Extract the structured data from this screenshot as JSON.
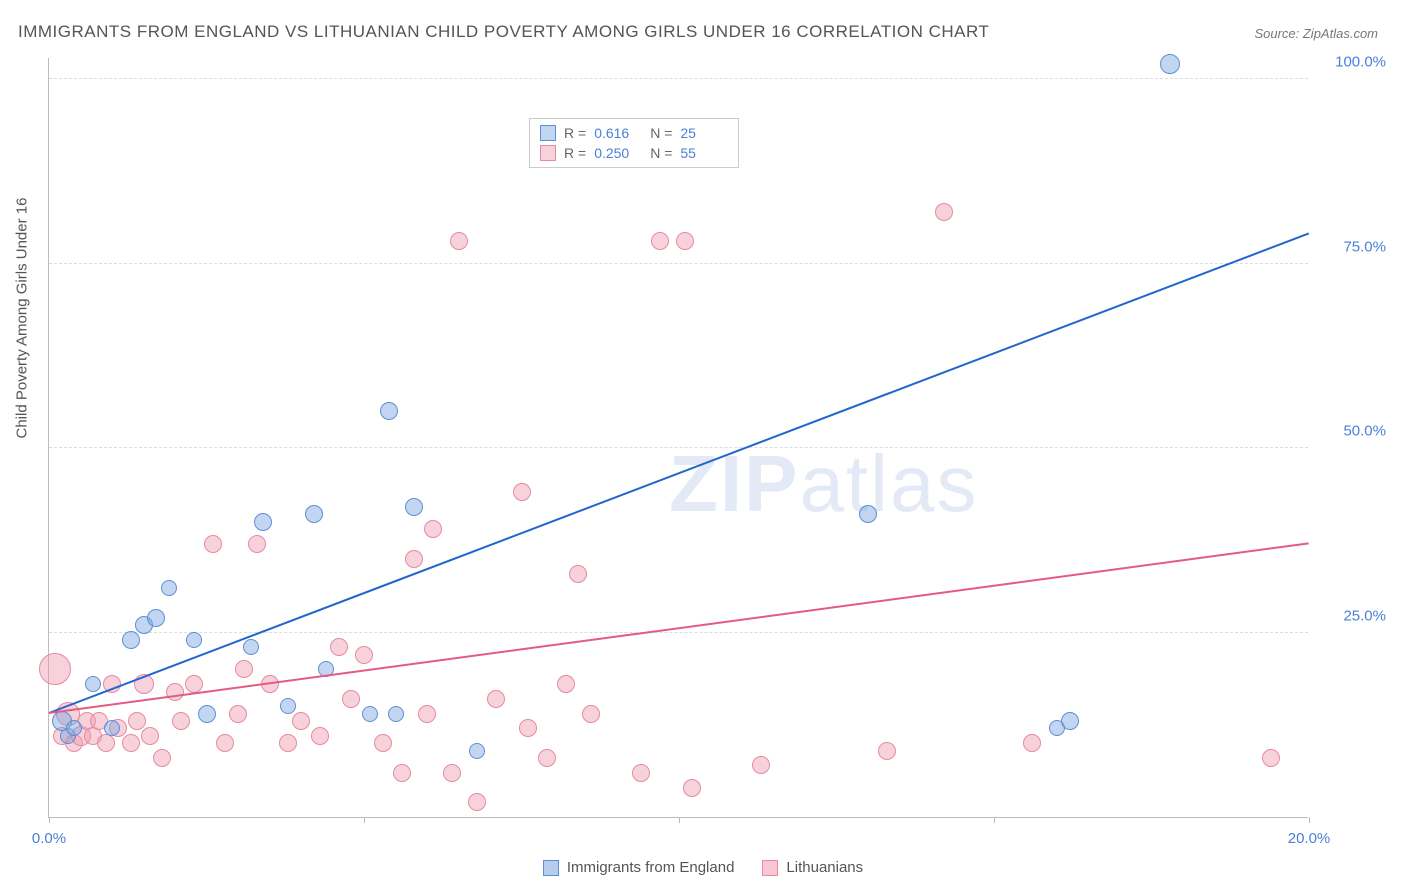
{
  "title": "IMMIGRANTS FROM ENGLAND VS LITHUANIAN CHILD POVERTY AMONG GIRLS UNDER 16 CORRELATION CHART",
  "source": "Source: ZipAtlas.com",
  "y_axis_label": "Child Poverty Among Girls Under 16",
  "watermark": {
    "prefix": "ZIP",
    "suffix": "atlas"
  },
  "chart": {
    "type": "scatter",
    "xlim": [
      0,
      20
    ],
    "ylim": [
      0,
      103
    ],
    "x_ticks": [
      0,
      5,
      10,
      15,
      20
    ],
    "x_tick_labels": [
      "0.0%",
      "",
      "",
      "",
      "20.0%"
    ],
    "y_ticks": [
      25,
      50,
      75,
      100
    ],
    "y_tick_labels": [
      "25.0%",
      "50.0%",
      "75.0%",
      "100.0%"
    ],
    "background_color": "#ffffff",
    "grid_color": "#dddddd",
    "axis_color": "#bbbbbb",
    "tick_label_color": "#4a7fd8",
    "series": [
      {
        "name": "Immigrants from England",
        "marker_fill": "rgba(120,165,225,0.45)",
        "marker_stroke": "#5d8fd4",
        "line_color": "#2166cc",
        "line_width": 2,
        "R": "0.616",
        "N": "25",
        "trend": {
          "x1": 0,
          "y1": 14,
          "x2": 20,
          "y2": 79
        },
        "points": [
          {
            "x": 0.2,
            "y": 13,
            "r": 10
          },
          {
            "x": 0.3,
            "y": 11,
            "r": 8
          },
          {
            "x": 0.4,
            "y": 12,
            "r": 8
          },
          {
            "x": 0.7,
            "y": 18,
            "r": 8
          },
          {
            "x": 1.0,
            "y": 12,
            "r": 8
          },
          {
            "x": 1.3,
            "y": 24,
            "r": 9
          },
          {
            "x": 1.5,
            "y": 26,
            "r": 9
          },
          {
            "x": 1.7,
            "y": 27,
            "r": 9
          },
          {
            "x": 1.9,
            "y": 31,
            "r": 8
          },
          {
            "x": 2.3,
            "y": 24,
            "r": 8
          },
          {
            "x": 2.5,
            "y": 14,
            "r": 9
          },
          {
            "x": 3.2,
            "y": 23,
            "r": 8
          },
          {
            "x": 3.4,
            "y": 40,
            "r": 9
          },
          {
            "x": 3.8,
            "y": 15,
            "r": 8
          },
          {
            "x": 4.2,
            "y": 41,
            "r": 9
          },
          {
            "x": 4.4,
            "y": 20,
            "r": 8
          },
          {
            "x": 5.1,
            "y": 14,
            "r": 8
          },
          {
            "x": 5.4,
            "y": 55,
            "r": 9
          },
          {
            "x": 5.5,
            "y": 14,
            "r": 8
          },
          {
            "x": 5.8,
            "y": 42,
            "r": 9
          },
          {
            "x": 6.8,
            "y": 9,
            "r": 8
          },
          {
            "x": 13.0,
            "y": 41,
            "r": 9
          },
          {
            "x": 16.0,
            "y": 12,
            "r": 8
          },
          {
            "x": 16.2,
            "y": 13,
            "r": 9
          },
          {
            "x": 17.8,
            "y": 102,
            "r": 10
          }
        ]
      },
      {
        "name": "Lithuanians",
        "marker_fill": "rgba(240,155,175,0.45)",
        "marker_stroke": "#e58aa2",
        "line_color": "#e35a84",
        "line_width": 2,
        "R": "0.250",
        "N": "55",
        "trend": {
          "x1": 0,
          "y1": 14,
          "x2": 20,
          "y2": 37
        },
        "points": [
          {
            "x": 0.1,
            "y": 20,
            "r": 16
          },
          {
            "x": 0.2,
            "y": 11,
            "r": 9
          },
          {
            "x": 0.3,
            "y": 14,
            "r": 12
          },
          {
            "x": 0.4,
            "y": 10,
            "r": 9
          },
          {
            "x": 0.5,
            "y": 11,
            "r": 10
          },
          {
            "x": 0.6,
            "y": 13,
            "r": 9
          },
          {
            "x": 0.7,
            "y": 11,
            "r": 9
          },
          {
            "x": 0.8,
            "y": 13,
            "r": 9
          },
          {
            "x": 0.9,
            "y": 10,
            "r": 9
          },
          {
            "x": 1.0,
            "y": 18,
            "r": 9
          },
          {
            "x": 1.1,
            "y": 12,
            "r": 9
          },
          {
            "x": 1.3,
            "y": 10,
            "r": 9
          },
          {
            "x": 1.4,
            "y": 13,
            "r": 9
          },
          {
            "x": 1.5,
            "y": 18,
            "r": 10
          },
          {
            "x": 1.6,
            "y": 11,
            "r": 9
          },
          {
            "x": 1.8,
            "y": 8,
            "r": 9
          },
          {
            "x": 2.0,
            "y": 17,
            "r": 9
          },
          {
            "x": 2.1,
            "y": 13,
            "r": 9
          },
          {
            "x": 2.3,
            "y": 18,
            "r": 9
          },
          {
            "x": 2.6,
            "y": 37,
            "r": 9
          },
          {
            "x": 2.8,
            "y": 10,
            "r": 9
          },
          {
            "x": 3.0,
            "y": 14,
            "r": 9
          },
          {
            "x": 3.1,
            "y": 20,
            "r": 9
          },
          {
            "x": 3.3,
            "y": 37,
            "r": 9
          },
          {
            "x": 3.5,
            "y": 18,
            "r": 9
          },
          {
            "x": 3.8,
            "y": 10,
            "r": 9
          },
          {
            "x": 4.0,
            "y": 13,
            "r": 9
          },
          {
            "x": 4.3,
            "y": 11,
            "r": 9
          },
          {
            "x": 4.6,
            "y": 23,
            "r": 9
          },
          {
            "x": 4.8,
            "y": 16,
            "r": 9
          },
          {
            "x": 5.0,
            "y": 22,
            "r": 9
          },
          {
            "x": 5.3,
            "y": 10,
            "r": 9
          },
          {
            "x": 5.6,
            "y": 6,
            "r": 9
          },
          {
            "x": 5.8,
            "y": 35,
            "r": 9
          },
          {
            "x": 6.0,
            "y": 14,
            "r": 9
          },
          {
            "x": 6.1,
            "y": 39,
            "r": 9
          },
          {
            "x": 6.4,
            "y": 6,
            "r": 9
          },
          {
            "x": 6.5,
            "y": 78,
            "r": 9
          },
          {
            "x": 6.8,
            "y": 2,
            "r": 9
          },
          {
            "x": 7.1,
            "y": 16,
            "r": 9
          },
          {
            "x": 7.5,
            "y": 44,
            "r": 9
          },
          {
            "x": 7.6,
            "y": 12,
            "r": 9
          },
          {
            "x": 7.9,
            "y": 8,
            "r": 9
          },
          {
            "x": 8.2,
            "y": 18,
            "r": 9
          },
          {
            "x": 8.4,
            "y": 33,
            "r": 9
          },
          {
            "x": 8.6,
            "y": 14,
            "r": 9
          },
          {
            "x": 9.4,
            "y": 6,
            "r": 9
          },
          {
            "x": 9.7,
            "y": 78,
            "r": 9
          },
          {
            "x": 10.1,
            "y": 78,
            "r": 9
          },
          {
            "x": 10.2,
            "y": 4,
            "r": 9
          },
          {
            "x": 11.3,
            "y": 7,
            "r": 9
          },
          {
            "x": 13.3,
            "y": 9,
            "r": 9
          },
          {
            "x": 14.2,
            "y": 82,
            "r": 9
          },
          {
            "x": 15.6,
            "y": 10,
            "r": 9
          },
          {
            "x": 19.4,
            "y": 8,
            "r": 9
          }
        ]
      }
    ]
  },
  "bottom_legend": [
    {
      "label": "Immigrants from England",
      "fill": "rgba(120,165,225,0.55)",
      "stroke": "#5d8fd4"
    },
    {
      "label": "Lithuanians",
      "fill": "rgba(240,155,175,0.55)",
      "stroke": "#e58aa2"
    }
  ]
}
